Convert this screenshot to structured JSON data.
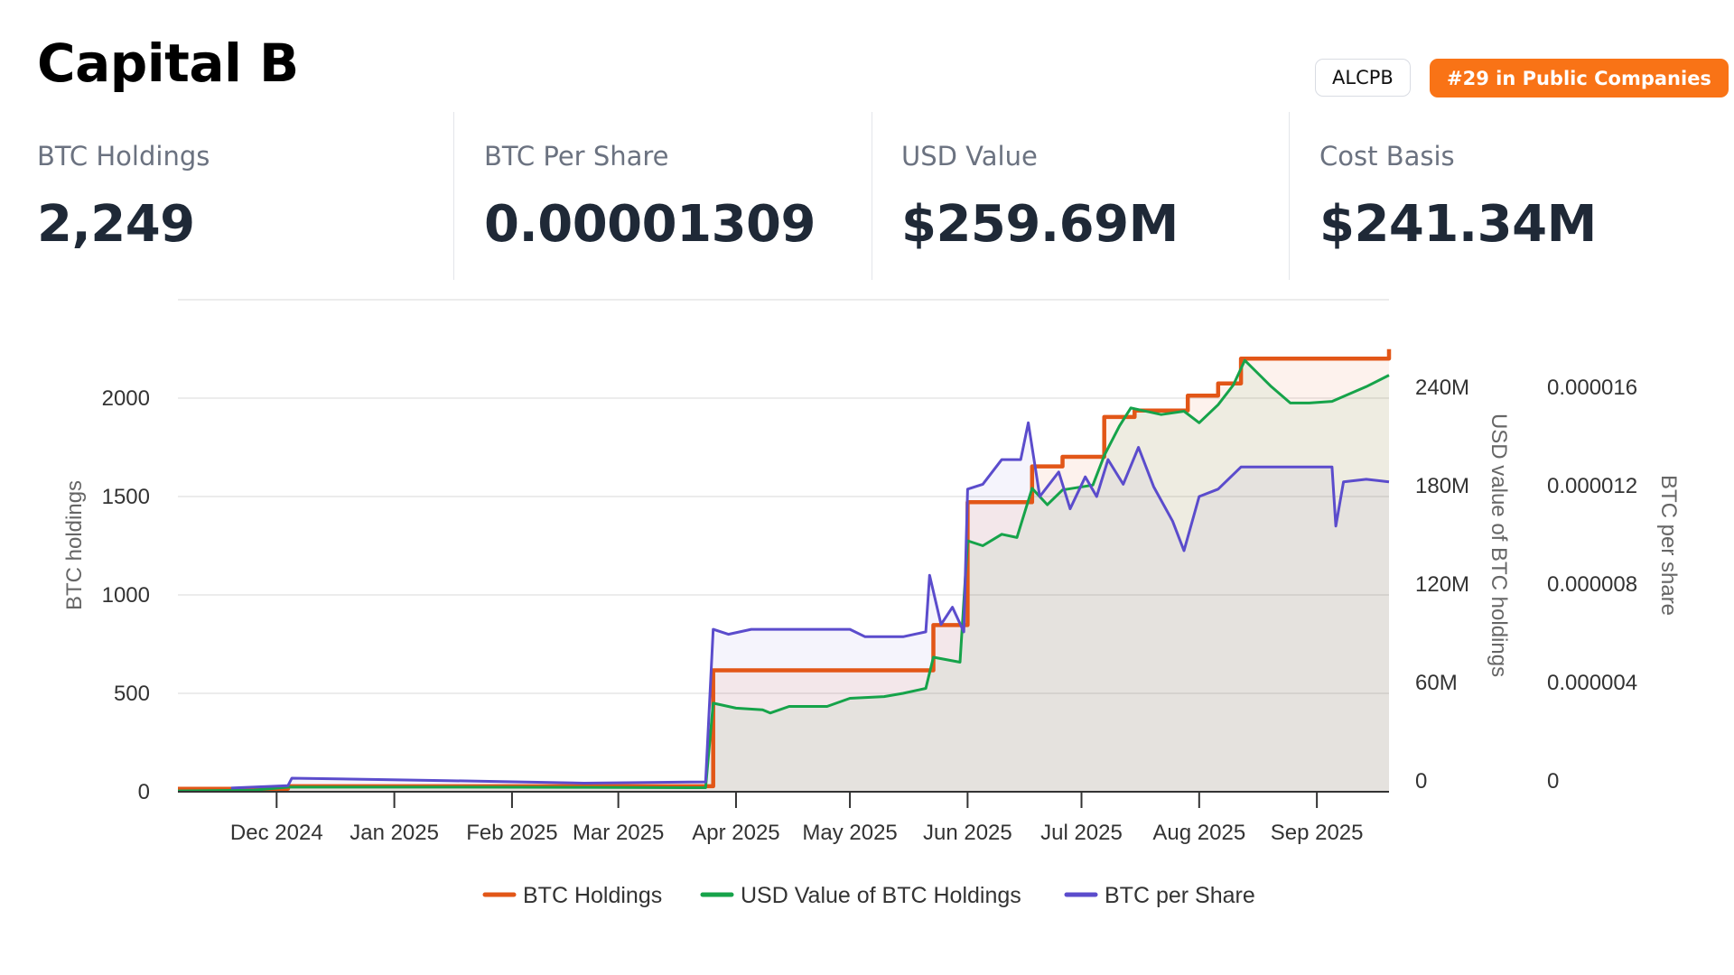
{
  "header": {
    "title": "Capital B",
    "ticker": "ALCPB",
    "rank": "#29 in Public Companies",
    "rank_color": "#f97316"
  },
  "stats": [
    {
      "label": "BTC Holdings",
      "value": "2,249"
    },
    {
      "label": "BTC Per Share",
      "value": "0.00001309"
    },
    {
      "label": "USD Value",
      "value": "$259.69M"
    },
    {
      "label": "Cost Basis",
      "value": "$241.34M"
    }
  ],
  "chart_data": {
    "type": "line",
    "x_range": [
      "2024-11-05",
      "2025-09-20"
    ],
    "grid": true,
    "legend_position": "bottom",
    "x_ticks": [
      "Dec 2024",
      "Jan 2025",
      "Feb 2025",
      "Mar 2025",
      "Apr 2025",
      "May 2025",
      "Jun 2025",
      "Jul 2025",
      "Aug 2025",
      "Sep 2025"
    ],
    "x_tick_dates": [
      "2024-12-01",
      "2025-01-01",
      "2025-02-01",
      "2025-03-01",
      "2025-04-01",
      "2025-05-01",
      "2025-06-01",
      "2025-07-01",
      "2025-08-01",
      "2025-09-01"
    ],
    "axes": {
      "left": {
        "title": "BTC holdings",
        "range": [
          0,
          2500
        ],
        "ticks": [
          "0",
          "500",
          "1000",
          "1500",
          "2000"
        ]
      },
      "right1": {
        "title": "USD value of BTC holdings",
        "range": [
          0,
          300000000
        ],
        "ticks": [
          "0",
          "60M",
          "120M",
          "180M",
          "240M"
        ]
      },
      "right2": {
        "title": "BTC per share",
        "range": [
          0,
          2e-05
        ],
        "ticks": [
          "0",
          "0.000004",
          "0.000008",
          "0.000012",
          "0.000016"
        ]
      }
    },
    "series": [
      {
        "name": "BTC Holdings",
        "color": "#e25617",
        "axis": "left",
        "line": "step",
        "points": [
          [
            "2024-11-05",
            15
          ],
          [
            "2024-11-25",
            15
          ],
          [
            "2024-12-04",
            28
          ],
          [
            "2025-03-24",
            28
          ],
          [
            "2025-03-26",
            617
          ],
          [
            "2025-05-21",
            617
          ],
          [
            "2025-05-23",
            847
          ],
          [
            "2025-05-30",
            847
          ],
          [
            "2025-06-01",
            1471
          ],
          [
            "2025-06-16",
            1471
          ],
          [
            "2025-06-18",
            1653
          ],
          [
            "2025-06-24",
            1653
          ],
          [
            "2025-06-26",
            1702
          ],
          [
            "2025-07-06",
            1702
          ],
          [
            "2025-07-07",
            1904
          ],
          [
            "2025-07-14",
            1904
          ],
          [
            "2025-07-15",
            1937
          ],
          [
            "2025-07-28",
            1937
          ],
          [
            "2025-07-29",
            2013
          ],
          [
            "2025-08-05",
            2013
          ],
          [
            "2025-08-06",
            2075
          ],
          [
            "2025-08-11",
            2075
          ],
          [
            "2025-08-12",
            2201
          ],
          [
            "2025-09-19",
            2201
          ],
          [
            "2025-09-20",
            2249
          ]
        ]
      },
      {
        "name": "USD Value of BTC Holdings",
        "color": "#16a34a",
        "axis": "right1",
        "line": "linear",
        "points": [
          [
            "2024-11-05",
            500000
          ],
          [
            "2024-11-25",
            1000000
          ],
          [
            "2024-12-04",
            2800000
          ],
          [
            "2025-01-15",
            2800000
          ],
          [
            "2025-02-20",
            2700000
          ],
          [
            "2025-03-24",
            2500000
          ],
          [
            "2025-03-26",
            54000000
          ],
          [
            "2025-04-01",
            51000000
          ],
          [
            "2025-04-08",
            50000000
          ],
          [
            "2025-04-10",
            48000000
          ],
          [
            "2025-04-15",
            52000000
          ],
          [
            "2025-04-25",
            52000000
          ],
          [
            "2025-05-01",
            57000000
          ],
          [
            "2025-05-10",
            58000000
          ],
          [
            "2025-05-15",
            60000000
          ],
          [
            "2025-05-21",
            63000000
          ],
          [
            "2025-05-23",
            82000000
          ],
          [
            "2025-05-30",
            79000000
          ],
          [
            "2025-06-01",
            153000000
          ],
          [
            "2025-06-05",
            150000000
          ],
          [
            "2025-06-10",
            157000000
          ],
          [
            "2025-06-14",
            155000000
          ],
          [
            "2025-06-18",
            185000000
          ],
          [
            "2025-06-22",
            175000000
          ],
          [
            "2025-06-26",
            184000000
          ],
          [
            "2025-07-04",
            187000000
          ],
          [
            "2025-07-07",
            205000000
          ],
          [
            "2025-07-11",
            223000000
          ],
          [
            "2025-07-14",
            234000000
          ],
          [
            "2025-07-22",
            230000000
          ],
          [
            "2025-07-28",
            232000000
          ],
          [
            "2025-08-01",
            225000000
          ],
          [
            "2025-08-06",
            236000000
          ],
          [
            "2025-08-10",
            248000000
          ],
          [
            "2025-08-13",
            263000000
          ],
          [
            "2025-08-20",
            247000000
          ],
          [
            "2025-08-25",
            237000000
          ],
          [
            "2025-08-30",
            237000000
          ],
          [
            "2025-09-05",
            238000000
          ],
          [
            "2025-09-10",
            243000000
          ],
          [
            "2025-09-14",
            247000000
          ],
          [
            "2025-09-20",
            254000000
          ]
        ]
      },
      {
        "name": "BTC per Share",
        "color": "#5b4ccc",
        "axis": "right2",
        "line": "linear",
        "points": [
          [
            "2024-11-19",
            1.5e-07
          ],
          [
            "2024-12-04",
            2.5e-07
          ],
          [
            "2024-12-05",
            5.5e-07
          ],
          [
            "2025-01-15",
            4.5e-07
          ],
          [
            "2025-02-20",
            3.5e-07
          ],
          [
            "2025-03-24",
            4e-07
          ],
          [
            "2025-03-26",
            6.6e-06
          ],
          [
            "2025-03-30",
            6.4e-06
          ],
          [
            "2025-04-05",
            6.6e-06
          ],
          [
            "2025-05-01",
            6.6e-06
          ],
          [
            "2025-05-05",
            6.3e-06
          ],
          [
            "2025-05-15",
            6.3e-06
          ],
          [
            "2025-05-21",
            6.5e-06
          ],
          [
            "2025-05-22",
            8.8e-06
          ],
          [
            "2025-05-25",
            6.8e-06
          ],
          [
            "2025-05-28",
            7.5e-06
          ],
          [
            "2025-05-31",
            6.5e-06
          ],
          [
            "2025-06-01",
            1.23e-05
          ],
          [
            "2025-06-05",
            1.25e-05
          ],
          [
            "2025-06-10",
            1.35e-05
          ],
          [
            "2025-06-15",
            1.35e-05
          ],
          [
            "2025-06-17",
            1.5e-05
          ],
          [
            "2025-06-20",
            1.2e-05
          ],
          [
            "2025-06-25",
            1.3e-05
          ],
          [
            "2025-06-28",
            1.15e-05
          ],
          [
            "2025-07-02",
            1.28e-05
          ],
          [
            "2025-07-05",
            1.2e-05
          ],
          [
            "2025-07-08",
            1.35e-05
          ],
          [
            "2025-07-12",
            1.25e-05
          ],
          [
            "2025-07-16",
            1.4e-05
          ],
          [
            "2025-07-20",
            1.24e-05
          ],
          [
            "2025-07-25",
            1.1e-05
          ],
          [
            "2025-07-28",
            9.8e-06
          ],
          [
            "2025-08-01",
            1.2e-05
          ],
          [
            "2025-08-06",
            1.23e-05
          ],
          [
            "2025-08-12",
            1.32e-05
          ],
          [
            "2025-09-05",
            1.32e-05
          ],
          [
            "2025-09-06",
            1.08e-05
          ],
          [
            "2025-09-08",
            1.26e-05
          ],
          [
            "2025-09-14",
            1.27e-05
          ],
          [
            "2025-09-20",
            1.26e-05
          ]
        ]
      }
    ]
  }
}
